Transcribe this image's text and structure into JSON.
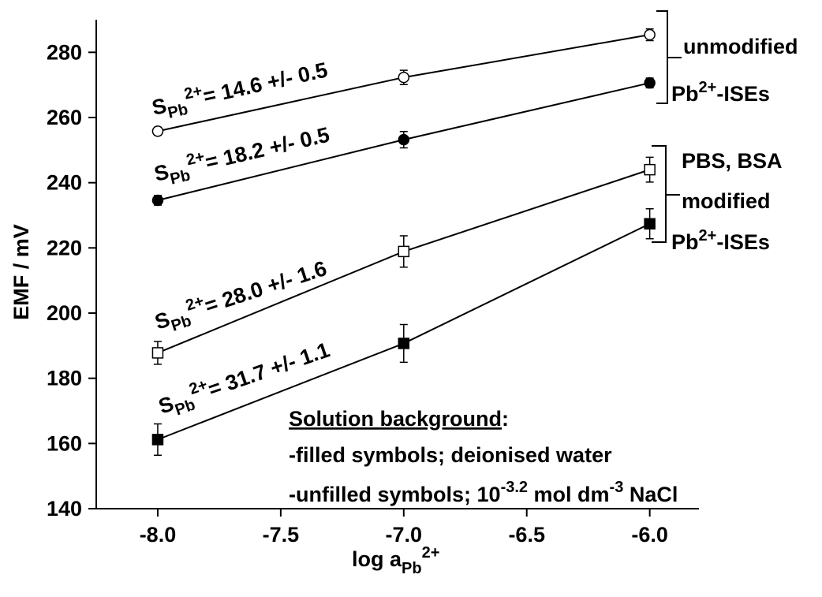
{
  "chart_data": {
    "type": "errorbar-line",
    "x_label": {
      "main": "log a",
      "sub": "Pb",
      "sup": "2+"
    },
    "y_label": "EMF / mV",
    "x": [
      -8,
      -7,
      -6
    ],
    "xlim": [
      -8.25,
      -5.8
    ],
    "xticks": [
      {
        "value": -8,
        "label": "-8.0"
      },
      {
        "value": -7.5,
        "label": "-7.5"
      },
      {
        "value": -7,
        "label": "-7.0"
      },
      {
        "value": -6.5,
        "label": "-6.5"
      },
      {
        "value": -6,
        "label": "-6.0"
      }
    ],
    "ylim": [
      140,
      290
    ],
    "yticks": [
      140,
      160,
      180,
      200,
      220,
      240,
      260,
      280
    ],
    "series": [
      {
        "marker": "circle",
        "filled": false,
        "color": "#000000",
        "values": [
          255.8,
          272.3,
          285.4
        ],
        "errors": [
          1.2,
          2.2,
          1.8
        ]
      },
      {
        "marker": "circle",
        "filled": true,
        "color": "#000000",
        "values": [
          234.6,
          253.2,
          270.6
        ],
        "errors": [
          1.5,
          2.5,
          1.5
        ]
      },
      {
        "marker": "square",
        "filled": false,
        "color": "#000000",
        "values": [
          187.8,
          218.9,
          244.0
        ],
        "errors": [
          3.5,
          4.8,
          3.8
        ]
      },
      {
        "marker": "square",
        "filled": true,
        "color": "#000000",
        "values": [
          161.2,
          190.7,
          227.4
        ],
        "errors": [
          4.8,
          5.8,
          4.6
        ]
      }
    ],
    "slope_labels": [
      {
        "symbol": "S",
        "sub": "Pb",
        "sup": "2+",
        "rest": "= 14.6 +/- 0.5"
      },
      {
        "symbol": "S",
        "sub": "Pb",
        "sup": "2+",
        "rest": "= 18.2 +/- 0.5"
      },
      {
        "symbol": "S",
        "sub": "Pb",
        "sup": "2+",
        "rest": "= 28.0 +/- 1.6"
      },
      {
        "symbol": "S",
        "sub": "Pb",
        "sup": "2+",
        "rest": "= 31.7 +/- 1.1"
      }
    ],
    "group_labels": [
      {
        "line1": "unmodified",
        "line2": "Pb",
        "line2_sup": "2+",
        "line2_rest": "-ISEs"
      },
      {
        "line1": "PBS, BSA",
        "line1b": "modified",
        "line2": "Pb",
        "line2_sup": "2+",
        "line2_rest": "-ISEs"
      }
    ],
    "note": {
      "heading": "Solution background",
      "colon": ":",
      "line1": "-filled symbols; deionised water",
      "line2": "-unfilled symbols; 10",
      "line2_sup": "-3.2",
      "line2_mid": " mol dm",
      "line2_sup2": "-3",
      "line2_rest": " NaCl"
    }
  }
}
